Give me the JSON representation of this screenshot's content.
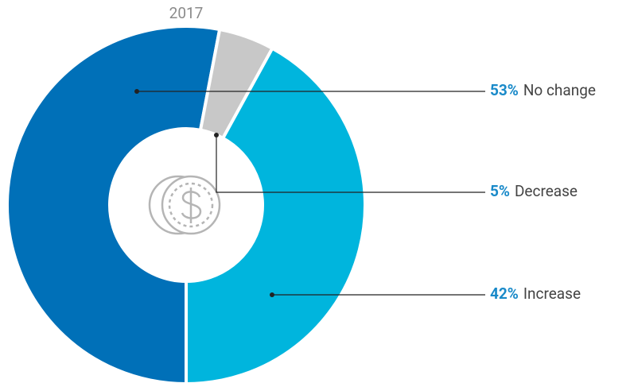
{
  "chart_data": {
    "type": "donut",
    "title": "2017",
    "categories": [
      "No change",
      "Decrease",
      "Increase"
    ],
    "values": [
      53,
      5,
      42
    ],
    "value_labels": [
      "53%",
      "5%",
      "42%"
    ],
    "colors": [
      "#0070b8",
      "#c8c8c8",
      "#00b5dd"
    ]
  }
}
